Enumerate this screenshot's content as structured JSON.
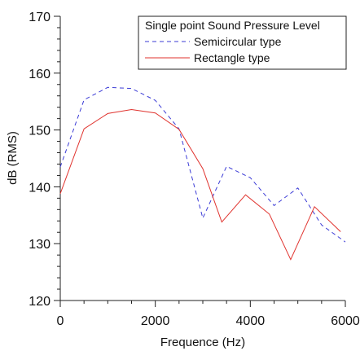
{
  "chart_data": {
    "type": "line",
    "title": "",
    "xlabel": "Frequence (Hz)",
    "ylabel": "dB (RMS)",
    "xlim": [
      0,
      6000
    ],
    "ylim": [
      120,
      170
    ],
    "x_ticks": [
      "0",
      "2000",
      "4000",
      "6000"
    ],
    "y_ticks": [
      "120",
      "130",
      "140",
      "150",
      "160",
      "170"
    ],
    "grid": false,
    "legend": {
      "title": "Single point Sound Pressure Level",
      "placement": "top-right"
    },
    "series": [
      {
        "name": "Semicircular type",
        "color": "#3b3bd6",
        "style": "dashed",
        "x": [
          0,
          500,
          1000,
          1500,
          2000,
          2500,
          3000,
          3500,
          4000,
          4500,
          5000,
          5500,
          6000
        ],
        "y": [
          143.5,
          155.3,
          157.5,
          157.3,
          155.2,
          150.2,
          134.5,
          143.6,
          141.6,
          136.7,
          139.8,
          133.3,
          130.3
        ]
      },
      {
        "name": "Rectangle type",
        "color": "#e0332e",
        "style": "solid",
        "x": [
          0,
          500,
          1000,
          1500,
          2000,
          2500,
          3000,
          3400,
          3900,
          4400,
          4850,
          5350,
          5900
        ],
        "y": [
          138.8,
          150.2,
          152.9,
          153.6,
          153.0,
          150.1,
          143.2,
          133.8,
          138.6,
          135.2,
          127.2,
          136.5,
          132.1
        ]
      }
    ]
  }
}
